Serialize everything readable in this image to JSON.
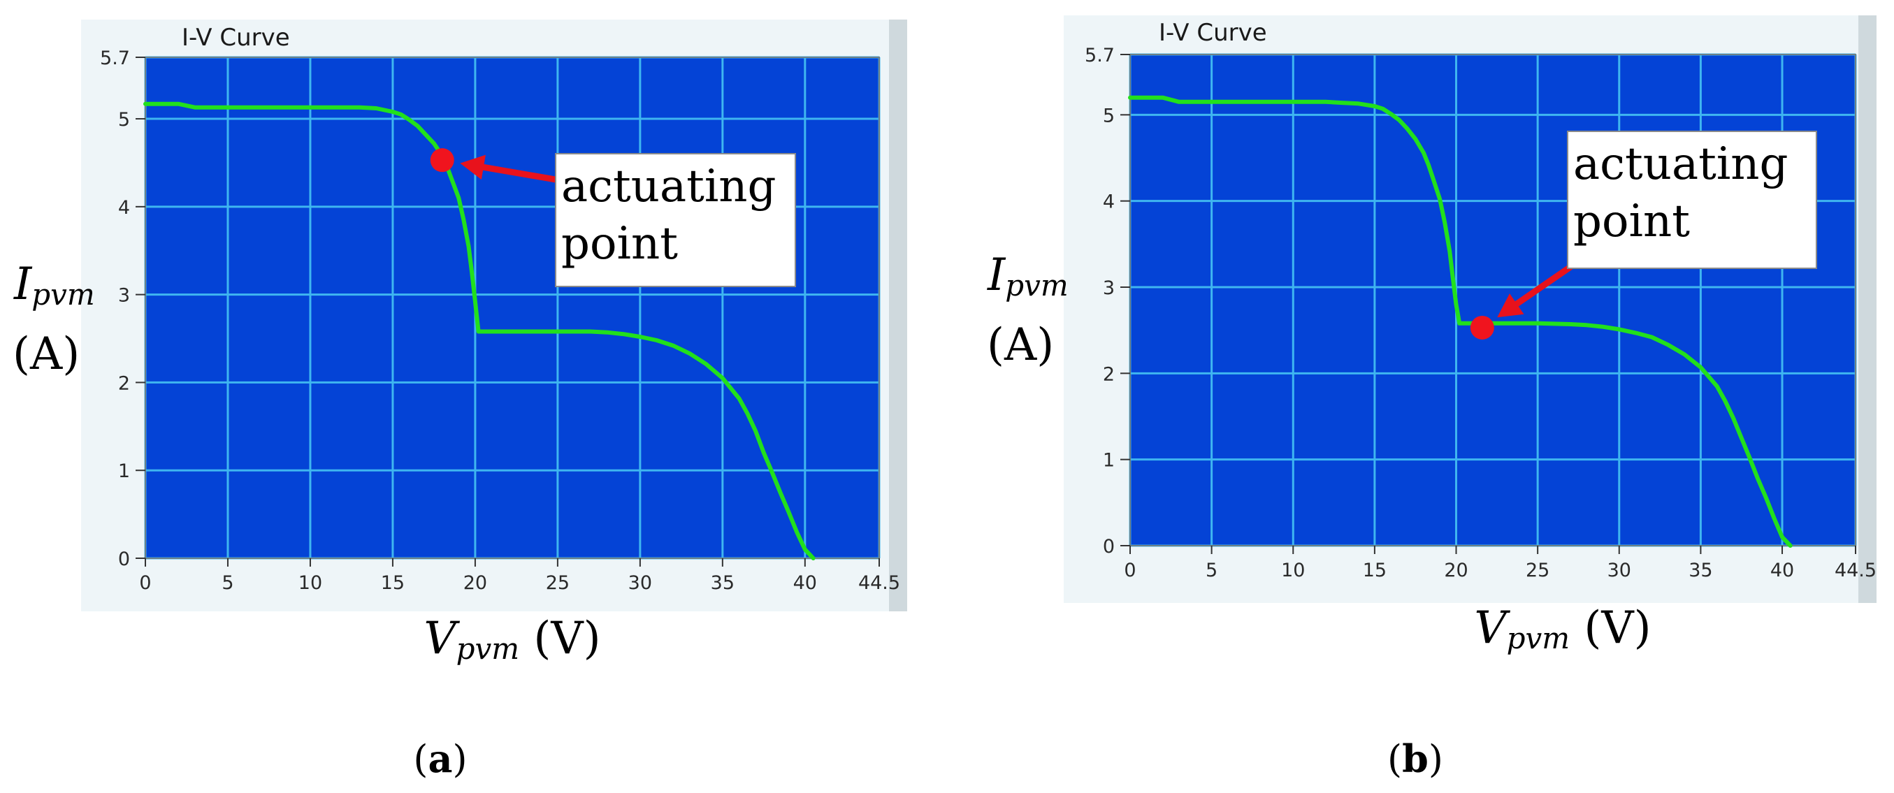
{
  "colors": {
    "plot_bg": "#0443d6",
    "grid": "#3fb6f0",
    "curve": "#22e01c",
    "marker": "#f0141e",
    "arrow": "#e8121c",
    "window_bg": "#eef5f8"
  },
  "chart_data": [
    {
      "type": "line",
      "window_title": "I-V Curve",
      "xlabel_main": "V",
      "xlabel_sub": "pvm",
      "xlabel_unit": " (V)",
      "ylabel_main": "I",
      "ylabel_sub": "pvm",
      "ylabel_unit": "(A)",
      "xlim": [
        0,
        44.5
      ],
      "ylim": [
        0,
        5.7
      ],
      "x_ticks": [
        "0",
        "5",
        "10",
        "15",
        "20",
        "25",
        "30",
        "35",
        "40",
        "44.5"
      ],
      "y_ticks": [
        "0",
        "1",
        "2",
        "3",
        "4",
        "5",
        "5.7"
      ],
      "x_grid": [
        0,
        5,
        10,
        15,
        20,
        25,
        30,
        35,
        40,
        44.5
      ],
      "y_grid": [
        0,
        1,
        2,
        3,
        4,
        5,
        5.7
      ],
      "grid": true,
      "series": [
        {
          "x": [
            0,
            0.5,
            1,
            2,
            3,
            5,
            8,
            10,
            12,
            13,
            14,
            15,
            15.5,
            16,
            16.5,
            17,
            17.5,
            18,
            18.3,
            18.6,
            19,
            19.3,
            19.6,
            19.8,
            20,
            20.2,
            21,
            23,
            25,
            27,
            28,
            29,
            30,
            31,
            32,
            33,
            34,
            35,
            36,
            36.5,
            37,
            37.5,
            38,
            38.5,
            39,
            39.5,
            40,
            40.5
          ],
          "y": [
            5.17,
            5.17,
            5.17,
            5.17,
            5.13,
            5.13,
            5.13,
            5.13,
            5.13,
            5.13,
            5.12,
            5.08,
            5.05,
            4.99,
            4.92,
            4.82,
            4.72,
            4.58,
            4.45,
            4.3,
            4.1,
            3.85,
            3.55,
            3.25,
            2.92,
            2.58,
            2.58,
            2.58,
            2.58,
            2.58,
            2.57,
            2.55,
            2.52,
            2.48,
            2.42,
            2.33,
            2.21,
            2.05,
            1.82,
            1.65,
            1.45,
            1.2,
            0.98,
            0.75,
            0.53,
            0.3,
            0.1,
            0.0
          ]
        }
      ],
      "marker_point": {
        "x": 18.0,
        "y": 4.53
      },
      "annotation": [
        "actuating",
        "point"
      ],
      "subfigure_label": "a"
    },
    {
      "type": "line",
      "window_title": "I-V Curve",
      "xlabel_main": "V",
      "xlabel_sub": "pvm",
      "xlabel_unit": " (V)",
      "ylabel_main": "I",
      "ylabel_sub": "pvm",
      "ylabel_unit": "(A)",
      "xlim": [
        0,
        44.5
      ],
      "ylim": [
        0,
        5.7
      ],
      "x_ticks": [
        "0",
        "5",
        "10",
        "15",
        "20",
        "25",
        "30",
        "35",
        "40",
        "44.5"
      ],
      "y_ticks": [
        "0",
        "1",
        "2",
        "3",
        "4",
        "5",
        "5.7"
      ],
      "x_grid": [
        0,
        5,
        10,
        15,
        20,
        25,
        30,
        35,
        40,
        44.5
      ],
      "y_grid": [
        0,
        1,
        2,
        3,
        4,
        5,
        5.7
      ],
      "grid": true,
      "series": [
        {
          "x": [
            0,
            0.5,
            1,
            2,
            3,
            5,
            8,
            10,
            12,
            13,
            14,
            15,
            15.5,
            16,
            16.5,
            17,
            17.5,
            18,
            18.3,
            18.6,
            19,
            19.3,
            19.6,
            19.8,
            20,
            20.2,
            21,
            23,
            25,
            27,
            28,
            29,
            30,
            31,
            32,
            33,
            34,
            35,
            36,
            36.5,
            37,
            37.5,
            38,
            38.5,
            39,
            39.5,
            40,
            40.5
          ],
          "y": [
            5.2,
            5.2,
            5.2,
            5.2,
            5.15,
            5.15,
            5.15,
            5.15,
            5.15,
            5.14,
            5.13,
            5.1,
            5.07,
            5.01,
            4.94,
            4.84,
            4.72,
            4.56,
            4.42,
            4.25,
            4.02,
            3.75,
            3.42,
            3.1,
            2.8,
            2.58,
            2.58,
            2.58,
            2.58,
            2.57,
            2.56,
            2.54,
            2.51,
            2.47,
            2.42,
            2.33,
            2.22,
            2.07,
            1.85,
            1.68,
            1.48,
            1.25,
            1.02,
            0.78,
            0.56,
            0.32,
            0.1,
            0.0
          ]
        }
      ],
      "marker_point": {
        "x": 21.6,
        "y": 2.53
      },
      "annotation": [
        "actuating",
        "point"
      ],
      "subfigure_label": "b"
    }
  ]
}
